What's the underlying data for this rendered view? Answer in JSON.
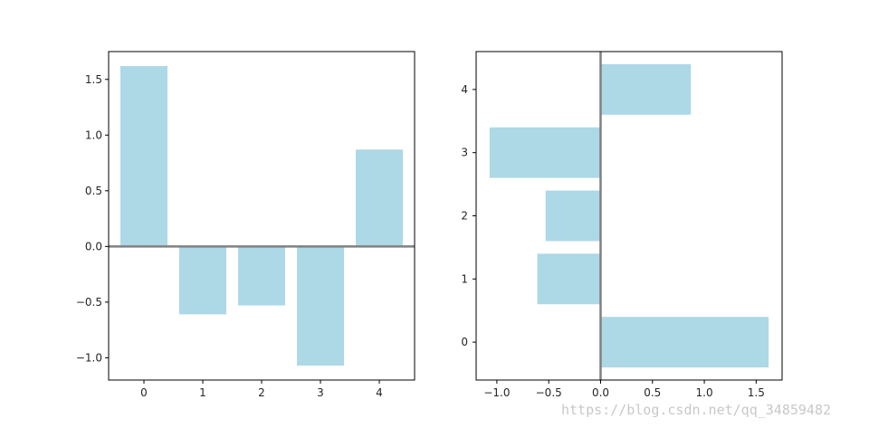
{
  "chart_data": [
    {
      "type": "bar",
      "orientation": "vertical",
      "categories": [
        "0",
        "1",
        "2",
        "3",
        "4"
      ],
      "values": [
        1.62,
        -0.61,
        -0.53,
        -1.07,
        0.87
      ],
      "title": "",
      "xlabel": "",
      "ylabel": "",
      "xlim": [
        -0.6,
        4.6
      ],
      "ylim": [
        -1.2,
        1.75
      ],
      "xticks": [
        "0",
        "1",
        "2",
        "3",
        "4"
      ],
      "yticks": [
        "−1.0",
        "−0.5",
        "0.0",
        "0.5",
        "1.0",
        "1.5"
      ],
      "ytick_values": [
        -1.0,
        -0.5,
        0.0,
        0.5,
        1.0,
        1.5
      ],
      "zero_line": true,
      "bar_color": "#add8e6",
      "zero_line_color": "#808080",
      "grid": false,
      "legend": "none"
    },
    {
      "type": "bar",
      "orientation": "horizontal",
      "categories": [
        "0",
        "1",
        "2",
        "3",
        "4"
      ],
      "values": [
        1.62,
        -0.61,
        -0.53,
        -1.07,
        0.87
      ],
      "title": "",
      "xlabel": "",
      "ylabel": "",
      "xlim": [
        -1.2,
        1.75
      ],
      "ylim": [
        -0.6,
        4.6
      ],
      "xticks": [
        "−1.0",
        "−0.5",
        "0.0",
        "0.5",
        "1.0",
        "1.5"
      ],
      "xtick_values": [
        -1.0,
        -0.5,
        0.0,
        0.5,
        1.0,
        1.5
      ],
      "yticks": [
        "0",
        "1",
        "2",
        "3",
        "4"
      ],
      "zero_line": true,
      "bar_color": "#add8e6",
      "zero_line_color": "#808080",
      "grid": false,
      "legend": "none"
    }
  ],
  "watermark": "https://blog.csdn.net/qq_34859482"
}
